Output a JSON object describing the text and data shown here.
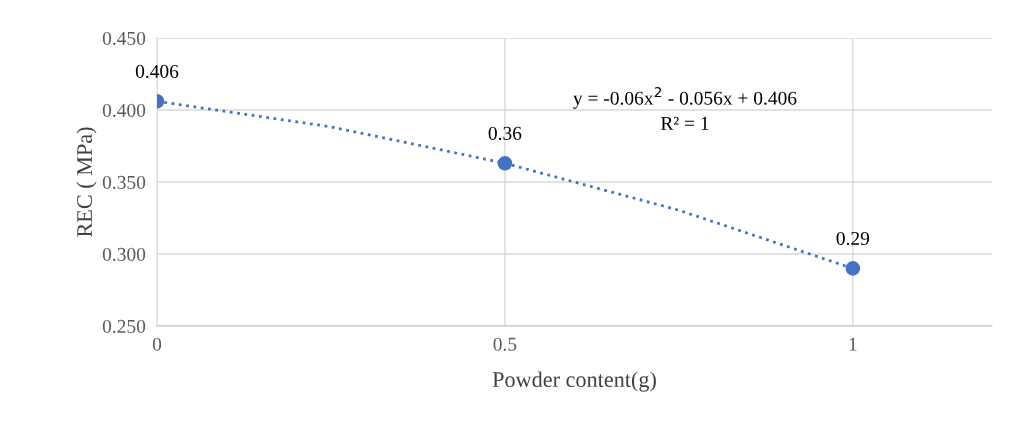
{
  "chart_data": {
    "type": "scatter",
    "xlabel": "Powder content(g)",
    "ylabel": "REC ( MPa)",
    "xlim": [
      0,
      1.2
    ],
    "xticks": [
      0,
      0.5,
      1
    ],
    "ylim": [
      0.25,
      0.45
    ],
    "yticks": [
      {
        "value": 0.25,
        "label": "0.250"
      },
      {
        "value": 0.3,
        "label": "0.300"
      },
      {
        "value": 0.35,
        "label": "0.350"
      },
      {
        "value": 0.4,
        "label": "0.400"
      },
      {
        "value": 0.45,
        "label": "0.450"
      }
    ],
    "grid": true,
    "legend": false,
    "series": [
      {
        "color": "#4472c4",
        "marker": "circle",
        "x": [
          0,
          0.5,
          1
        ],
        "values": [
          0.406,
          0.363,
          0.29
        ],
        "value_labels": [
          "0.406",
          "0.36",
          "0.29"
        ]
      },
      {
        "type": "line",
        "color": "#4472c4",
        "marker": "none",
        "line_style": "dotted",
        "x": [
          0,
          0.25,
          0.5,
          0.75,
          1
        ],
        "values": [
          0.406,
          0.3883,
          0.363,
          0.3304,
          0.29
        ]
      }
    ],
    "annotations": [
      "y = -0.06x$^{2}$ - 0.056x + 0.406",
      "R² = 1"
    ]
  }
}
